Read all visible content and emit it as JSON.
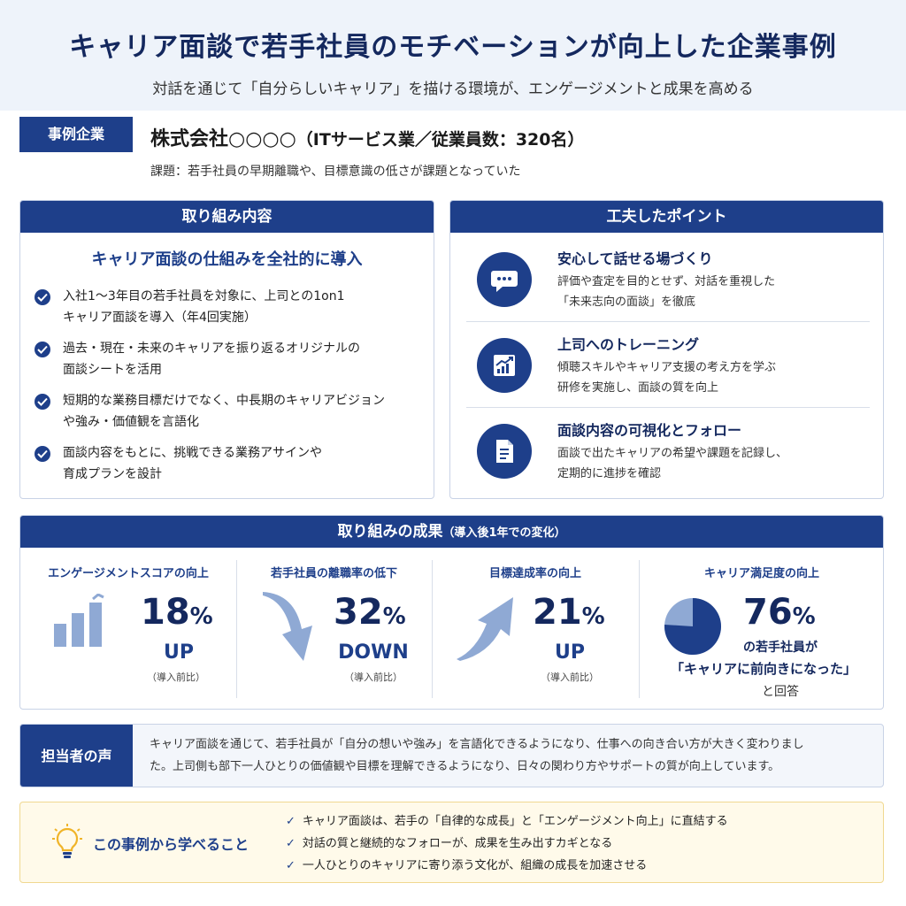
{
  "header": {
    "title": "キャリア面談で若手社員のモチベーションが向上した企業事例",
    "subtitle": "対話を通じて「自分らしいキャリア」を描ける環境が、エンゲージメントと成果を高める"
  },
  "company": {
    "badge": "事例企業",
    "name": "株式会社○○○○",
    "detail": "（ITサービス業／従業員数：320名）",
    "issue": "課題：若手社員の早期離職や、目標意識の低さが課題となっていた"
  },
  "initiatives": {
    "heading": "取り組み内容",
    "subheading": "キャリア面談の仕組みを全社的に導入",
    "items": [
      {
        "line1": "入社1～3年目の若手社員を対象に、上司との1on1",
        "line2": "キャリア面談を導入（年4回実施）"
      },
      {
        "line1": "過去・現在・未来のキャリアを振り返るオリジナルの",
        "line2": "面談シートを活用"
      },
      {
        "line1": "短期的な業務目標だけでなく、中長期のキャリアビジョン",
        "line2": "や強み・価値観を言語化"
      },
      {
        "line1": "面談内容をもとに、挑戦できる業務アサインや",
        "line2": "育成プランを設計"
      }
    ]
  },
  "points": {
    "heading": "工夫したポイント",
    "items": [
      {
        "icon": "chat-bubble-icon",
        "title": "安心して話せる場づくり",
        "line1": "評価や査定を目的とせず、対話を重視した",
        "line2": "「未来志向の面談」を徹底"
      },
      {
        "icon": "growth-chart-icon",
        "title": "上司へのトレーニング",
        "line1": "傾聴スキルやキャリア支援の考え方を学ぶ",
        "line2": "研修を実施し、面談の質を向上"
      },
      {
        "icon": "document-icon",
        "title": "面談内容の可視化とフォロー",
        "line1": "面談で出たキャリアの希望や課題を記録し、",
        "line2": "定期的に進捗を確認"
      }
    ]
  },
  "results": {
    "heading": "取り組みの成果",
    "heading_sub": "（導入後1年での変化）",
    "engagement": {
      "title": "エンゲージメントスコアの向上",
      "value": "18",
      "unit": "%",
      "word": "UP",
      "note": "（導入前比）",
      "icon": "bar-chart-icon"
    },
    "turnover": {
      "title": "若手社員の離職率の低下",
      "value": "32",
      "unit": "%",
      "word": "DOWN",
      "note": "（導入前比）",
      "icon": "arrow-down-icon"
    },
    "goal": {
      "title": "目標達成率の向上",
      "value": "21",
      "unit": "%",
      "word": "UP",
      "note": "（導入前比）",
      "icon": "arrow-up-icon"
    },
    "satisfaction": {
      "title": "キャリア満足度の向上",
      "value": "76",
      "unit": "%",
      "line1": "の若手社員が",
      "line2": "「キャリアに前向きになった」",
      "line3": "と回答",
      "icon": "pie-chart-icon",
      "share": 0.76
    }
  },
  "voice": {
    "label": "担当者の声",
    "line1": "キャリア面談を通じて、若手社員が「自分の想いや強み」を言語化できるようになり、仕事への向き合い方が大きく変わりまし",
    "line2": "た。上司側も部下一人ひとりの価値観や目標を理解できるようになり、日々の関わり方やサポートの質が向上しています。"
  },
  "learnings": {
    "label": "この事例から学べること",
    "icon": "lightbulb-icon",
    "items": [
      "キャリア面談は、若手の「自律的な成長」と「エンゲージメント向上」に直結する",
      "対話の質と継続的なフォローが、成果を生み出すカギとなる",
      "一人ひとりのキャリアに寄り添う文化が、組織の成長を加速させる"
    ]
  },
  "colors": {
    "primary": "#1e3f8a",
    "title": "#14285e",
    "header_bg": "#eef3fa",
    "learn_bg": "#fffaea",
    "accent_light": "#8fa9d4"
  }
}
